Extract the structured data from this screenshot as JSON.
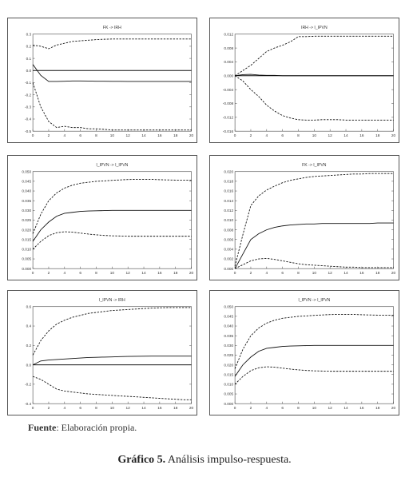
{
  "footer": {
    "source_label": "Fuente",
    "source_text": ": Elaboración propia.",
    "caption_label": "Gráfico 5.",
    "caption_text": " Análisis impulso-respuesta."
  },
  "chart_data": [
    {
      "type": "line",
      "title": "FK -> IRH",
      "xlim": [
        0,
        20
      ],
      "ylim": [
        -0.5,
        0.3
      ],
      "xticks": [
        0,
        2,
        4,
        6,
        8,
        10,
        12,
        14,
        16,
        18,
        20
      ],
      "xtick_labels": [
        "0",
        "2",
        "4",
        "6",
        "8",
        "10",
        "12",
        "14",
        "16",
        "18",
        "20"
      ],
      "yticks": [
        -0.5,
        -0.4,
        -0.3,
        -0.2,
        -0.1,
        0,
        0.1,
        0.2,
        0.3
      ],
      "ytick_labels": [
        "-0.5",
        "-0.4",
        "-0.3",
        "-0.2",
        "-0.1",
        "0.0",
        "0.1",
        "0.2",
        "0.3"
      ],
      "zero_line": true,
      "x": [
        0,
        1,
        2,
        3,
        4,
        5,
        6,
        7,
        8,
        9,
        10,
        11,
        12,
        13,
        14,
        15,
        16,
        17,
        18,
        19,
        20
      ],
      "series": [
        {
          "style": "solid",
          "values": [
            0.05,
            -0.04,
            -0.09,
            -0.09,
            -0.088,
            -0.086,
            -0.086,
            -0.087,
            -0.088,
            -0.088,
            -0.089,
            -0.089,
            -0.09,
            -0.09,
            -0.09,
            -0.09,
            -0.09,
            -0.09,
            -0.09,
            -0.09,
            -0.09
          ]
        },
        {
          "style": "dashed",
          "values": [
            0.21,
            0.2,
            0.18,
            0.21,
            0.225,
            0.24,
            0.245,
            0.25,
            0.255,
            0.258,
            0.26,
            0.26,
            0.26,
            0.26,
            0.26,
            0.26,
            0.26,
            0.26,
            0.26,
            0.26,
            0.26
          ]
        },
        {
          "style": "dashed",
          "values": [
            -0.1,
            -0.3,
            -0.42,
            -0.47,
            -0.46,
            -0.47,
            -0.47,
            -0.48,
            -0.48,
            -0.485,
            -0.49,
            -0.49,
            -0.49,
            -0.49,
            -0.49,
            -0.49,
            -0.49,
            -0.49,
            -0.49,
            -0.49,
            -0.49
          ]
        }
      ]
    },
    {
      "type": "line",
      "title": "IRH -> I_IPVN",
      "xlim": [
        0,
        20
      ],
      "ylim": [
        -0.016,
        0.012
      ],
      "xticks": [
        0,
        2,
        4,
        6,
        8,
        10,
        12,
        14,
        16,
        18,
        20
      ],
      "xtick_labels": [
        "0",
        "2",
        "4",
        "6",
        "8",
        "10",
        "12",
        "14",
        "16",
        "18",
        "20"
      ],
      "yticks": [
        -0.016,
        -0.012,
        -0.008,
        -0.004,
        0,
        0.004,
        0.008,
        0.012
      ],
      "ytick_labels": [
        "-0.016",
        "-0.012",
        "-0.008",
        "-0.004",
        "0.000",
        "0.004",
        "0.008",
        "0.012"
      ],
      "zero_line": true,
      "x": [
        0,
        1,
        2,
        3,
        4,
        5,
        6,
        7,
        8,
        9,
        10,
        11,
        12,
        13,
        14,
        15,
        16,
        17,
        18,
        19,
        20
      ],
      "series": [
        {
          "style": "solid",
          "values": [
            0,
            0.0003,
            0.0004,
            0.0002,
            0.0001,
            0.0001,
            0,
            0,
            0,
            0,
            0,
            0,
            0,
            0,
            0,
            0,
            0,
            0,
            0,
            0,
            0
          ]
        },
        {
          "style": "dashed",
          "values": [
            0,
            0.0015,
            0.003,
            0.005,
            0.007,
            0.008,
            0.0088,
            0.0098,
            0.0113,
            0.0113,
            0.0114,
            0.0114,
            0.0114,
            0.0114,
            0.0114,
            0.0114,
            0.0114,
            0.0114,
            0.0114,
            0.0114,
            0.0114
          ]
        },
        {
          "style": "dashed",
          "values": [
            0,
            -0.0015,
            -0.004,
            -0.006,
            -0.0085,
            -0.0102,
            -0.0115,
            -0.0122,
            -0.0127,
            -0.0128,
            -0.0128,
            -0.0127,
            -0.0127,
            -0.0127,
            -0.0128,
            -0.0128,
            -0.0128,
            -0.0128,
            -0.0128,
            -0.0128,
            -0.0128
          ]
        }
      ]
    },
    {
      "type": "line",
      "title": "I_IPVN -> I_IPVN",
      "xlim": [
        0,
        20
      ],
      "ylim": [
        0,
        0.05
      ],
      "xticks": [
        0,
        2,
        4,
        6,
        8,
        10,
        12,
        14,
        16,
        18,
        20
      ],
      "xtick_labels": [
        "0",
        "2",
        "4",
        "6",
        "8",
        "10",
        "12",
        "14",
        "16",
        "18",
        "20"
      ],
      "yticks": [
        0,
        0.005,
        0.01,
        0.015,
        0.02,
        0.025,
        0.03,
        0.035,
        0.04,
        0.045,
        0.05
      ],
      "ytick_labels": [
        "0.000",
        "0.005",
        "0.010",
        "0.015",
        "0.020",
        "0.025",
        "0.030",
        "0.035",
        "0.040",
        "0.045",
        "0.050"
      ],
      "zero_line": false,
      "x": [
        0,
        1,
        2,
        3,
        4,
        5,
        6,
        7,
        8,
        9,
        10,
        11,
        12,
        13,
        14,
        15,
        16,
        17,
        18,
        19,
        20
      ],
      "series": [
        {
          "style": "solid",
          "values": [
            0.014,
            0.02,
            0.024,
            0.027,
            0.0285,
            0.029,
            0.0295,
            0.0297,
            0.0298,
            0.0299,
            0.03,
            0.03,
            0.03,
            0.03,
            0.03,
            0.03,
            0.03,
            0.03,
            0.03,
            0.03,
            0.03
          ]
        },
        {
          "style": "dashed",
          "values": [
            0.018,
            0.028,
            0.035,
            0.039,
            0.0415,
            0.043,
            0.044,
            0.0445,
            0.045,
            0.0452,
            0.0455,
            0.0457,
            0.0459,
            0.046,
            0.046,
            0.046,
            0.0458,
            0.0457,
            0.0456,
            0.0456,
            0.0456
          ]
        },
        {
          "style": "dashed",
          "values": [
            0.01,
            0.014,
            0.017,
            0.0185,
            0.019,
            0.0188,
            0.0183,
            0.0178,
            0.0174,
            0.0171,
            0.0169,
            0.0168,
            0.0167,
            0.0167,
            0.0167,
            0.0167,
            0.0167,
            0.0167,
            0.0167,
            0.0167,
            0.0167
          ]
        }
      ]
    },
    {
      "type": "line",
      "title": "FK -> I_IPVN",
      "xlim": [
        0,
        20
      ],
      "ylim": [
        0,
        0.02
      ],
      "xticks": [
        0,
        2,
        4,
        6,
        8,
        10,
        12,
        14,
        16,
        18,
        20
      ],
      "xtick_labels": [
        "0",
        "2",
        "4",
        "6",
        "8",
        "10",
        "12",
        "14",
        "16",
        "18",
        "20"
      ],
      "yticks": [
        0,
        0.002,
        0.004,
        0.006,
        0.008,
        0.01,
        0.012,
        0.014,
        0.016,
        0.018,
        0.02
      ],
      "ytick_labels": [
        "0.000",
        "0.002",
        "0.004",
        "0.006",
        "0.008",
        "0.010",
        "0.012",
        "0.014",
        "0.016",
        "0.018",
        "0.020"
      ],
      "zero_line": false,
      "x": [
        0,
        1,
        2,
        3,
        4,
        5,
        6,
        7,
        8,
        9,
        10,
        11,
        12,
        13,
        14,
        15,
        16,
        17,
        18,
        19,
        20
      ],
      "series": [
        {
          "style": "solid",
          "values": [
            0,
            0.003,
            0.006,
            0.0072,
            0.008,
            0.0085,
            0.0088,
            0.009,
            0.0091,
            0.0092,
            0.0092,
            0.0093,
            0.0093,
            0.0093,
            0.0093,
            0.0093,
            0.0093,
            0.0093,
            0.0094,
            0.0094,
            0.0094
          ]
        },
        {
          "style": "dashed",
          "values": [
            0.0005,
            0.007,
            0.013,
            0.015,
            0.0162,
            0.017,
            0.0177,
            0.0182,
            0.0185,
            0.0188,
            0.019,
            0.0191,
            0.0192,
            0.0193,
            0.0194,
            0.0195,
            0.0195,
            0.0196,
            0.0196,
            0.0196,
            0.0196
          ]
        },
        {
          "style": "dashed",
          "values": [
            0,
            0.0008,
            0.0016,
            0.002,
            0.0021,
            0.0019,
            0.0016,
            0.0013,
            0.001,
            0.0008,
            0.0007,
            0.0006,
            0.0005,
            0.0004,
            0.0003,
            0.0003,
            0.0002,
            0.0002,
            0.0002,
            0.0002,
            0.0002
          ]
        }
      ]
    },
    {
      "type": "line",
      "title": "I_IPVN -> IRH",
      "xlim": [
        0,
        20
      ],
      "ylim": [
        -0.4,
        0.6
      ],
      "xticks": [
        0,
        2,
        4,
        6,
        8,
        10,
        12,
        14,
        16,
        18,
        20
      ],
      "xtick_labels": [
        "0",
        "2",
        "4",
        "6",
        "8",
        "10",
        "12",
        "14",
        "16",
        "18",
        "20"
      ],
      "yticks": [
        -0.4,
        -0.2,
        0,
        0.2,
        0.4,
        0.6
      ],
      "ytick_labels": [
        "-0.4",
        "-0.2",
        "0.0",
        "0.2",
        "0.4",
        "0.6"
      ],
      "zero_line": true,
      "x": [
        0,
        1,
        2,
        3,
        4,
        5,
        6,
        7,
        8,
        9,
        10,
        11,
        12,
        13,
        14,
        15,
        16,
        17,
        18,
        19,
        20
      ],
      "series": [
        {
          "style": "solid",
          "values": [
            0.0,
            0.04,
            0.05,
            0.055,
            0.06,
            0.065,
            0.07,
            0.075,
            0.078,
            0.08,
            0.082,
            0.085,
            0.087,
            0.088,
            0.089,
            0.09,
            0.09,
            0.09,
            0.09,
            0.09,
            0.09
          ]
        },
        {
          "style": "dashed",
          "values": [
            0.1,
            0.25,
            0.35,
            0.42,
            0.46,
            0.49,
            0.51,
            0.53,
            0.54,
            0.55,
            0.56,
            0.565,
            0.57,
            0.575,
            0.58,
            0.585,
            0.588,
            0.59,
            0.59,
            0.59,
            0.59
          ]
        },
        {
          "style": "dashed",
          "values": [
            -0.12,
            -0.15,
            -0.2,
            -0.25,
            -0.27,
            -0.28,
            -0.29,
            -0.3,
            -0.305,
            -0.31,
            -0.315,
            -0.32,
            -0.325,
            -0.33,
            -0.335,
            -0.34,
            -0.345,
            -0.35,
            -0.355,
            -0.36,
            -0.36
          ]
        }
      ]
    },
    {
      "type": "line",
      "title": "I_IPVN -> I_IPVN",
      "xlim": [
        0,
        20
      ],
      "ylim": [
        0,
        0.05
      ],
      "xticks": [
        0,
        2,
        4,
        6,
        8,
        10,
        12,
        14,
        16,
        18,
        20
      ],
      "xtick_labels": [
        "0",
        "2",
        "4",
        "6",
        "8",
        "10",
        "12",
        "14",
        "16",
        "18",
        "20"
      ],
      "yticks": [
        0,
        0.005,
        0.01,
        0.015,
        0.02,
        0.025,
        0.03,
        0.035,
        0.04,
        0.045,
        0.05
      ],
      "ytick_labels": [
        "0.000",
        "0.005",
        "0.010",
        "0.015",
        "0.020",
        "0.025",
        "0.030",
        "0.035",
        "0.040",
        "0.045",
        "0.050"
      ],
      "zero_line": false,
      "x": [
        0,
        1,
        2,
        3,
        4,
        5,
        6,
        7,
        8,
        9,
        10,
        11,
        12,
        13,
        14,
        15,
        16,
        17,
        18,
        19,
        20
      ],
      "series": [
        {
          "style": "solid",
          "values": [
            0.014,
            0.02,
            0.024,
            0.027,
            0.0285,
            0.029,
            0.0295,
            0.0297,
            0.0298,
            0.0299,
            0.03,
            0.03,
            0.03,
            0.03,
            0.03,
            0.03,
            0.03,
            0.03,
            0.03,
            0.03,
            0.03
          ]
        },
        {
          "style": "dashed",
          "values": [
            0.018,
            0.028,
            0.035,
            0.039,
            0.0415,
            0.043,
            0.044,
            0.0445,
            0.045,
            0.0452,
            0.0455,
            0.0457,
            0.0459,
            0.046,
            0.046,
            0.046,
            0.0458,
            0.0457,
            0.0456,
            0.0456,
            0.0456
          ]
        },
        {
          "style": "dashed",
          "values": [
            0.01,
            0.014,
            0.017,
            0.0185,
            0.019,
            0.0188,
            0.0183,
            0.0178,
            0.0174,
            0.0171,
            0.0169,
            0.0168,
            0.0167,
            0.0167,
            0.0167,
            0.0167,
            0.0167,
            0.0167,
            0.0167,
            0.0167,
            0.0167
          ]
        }
      ]
    }
  ]
}
